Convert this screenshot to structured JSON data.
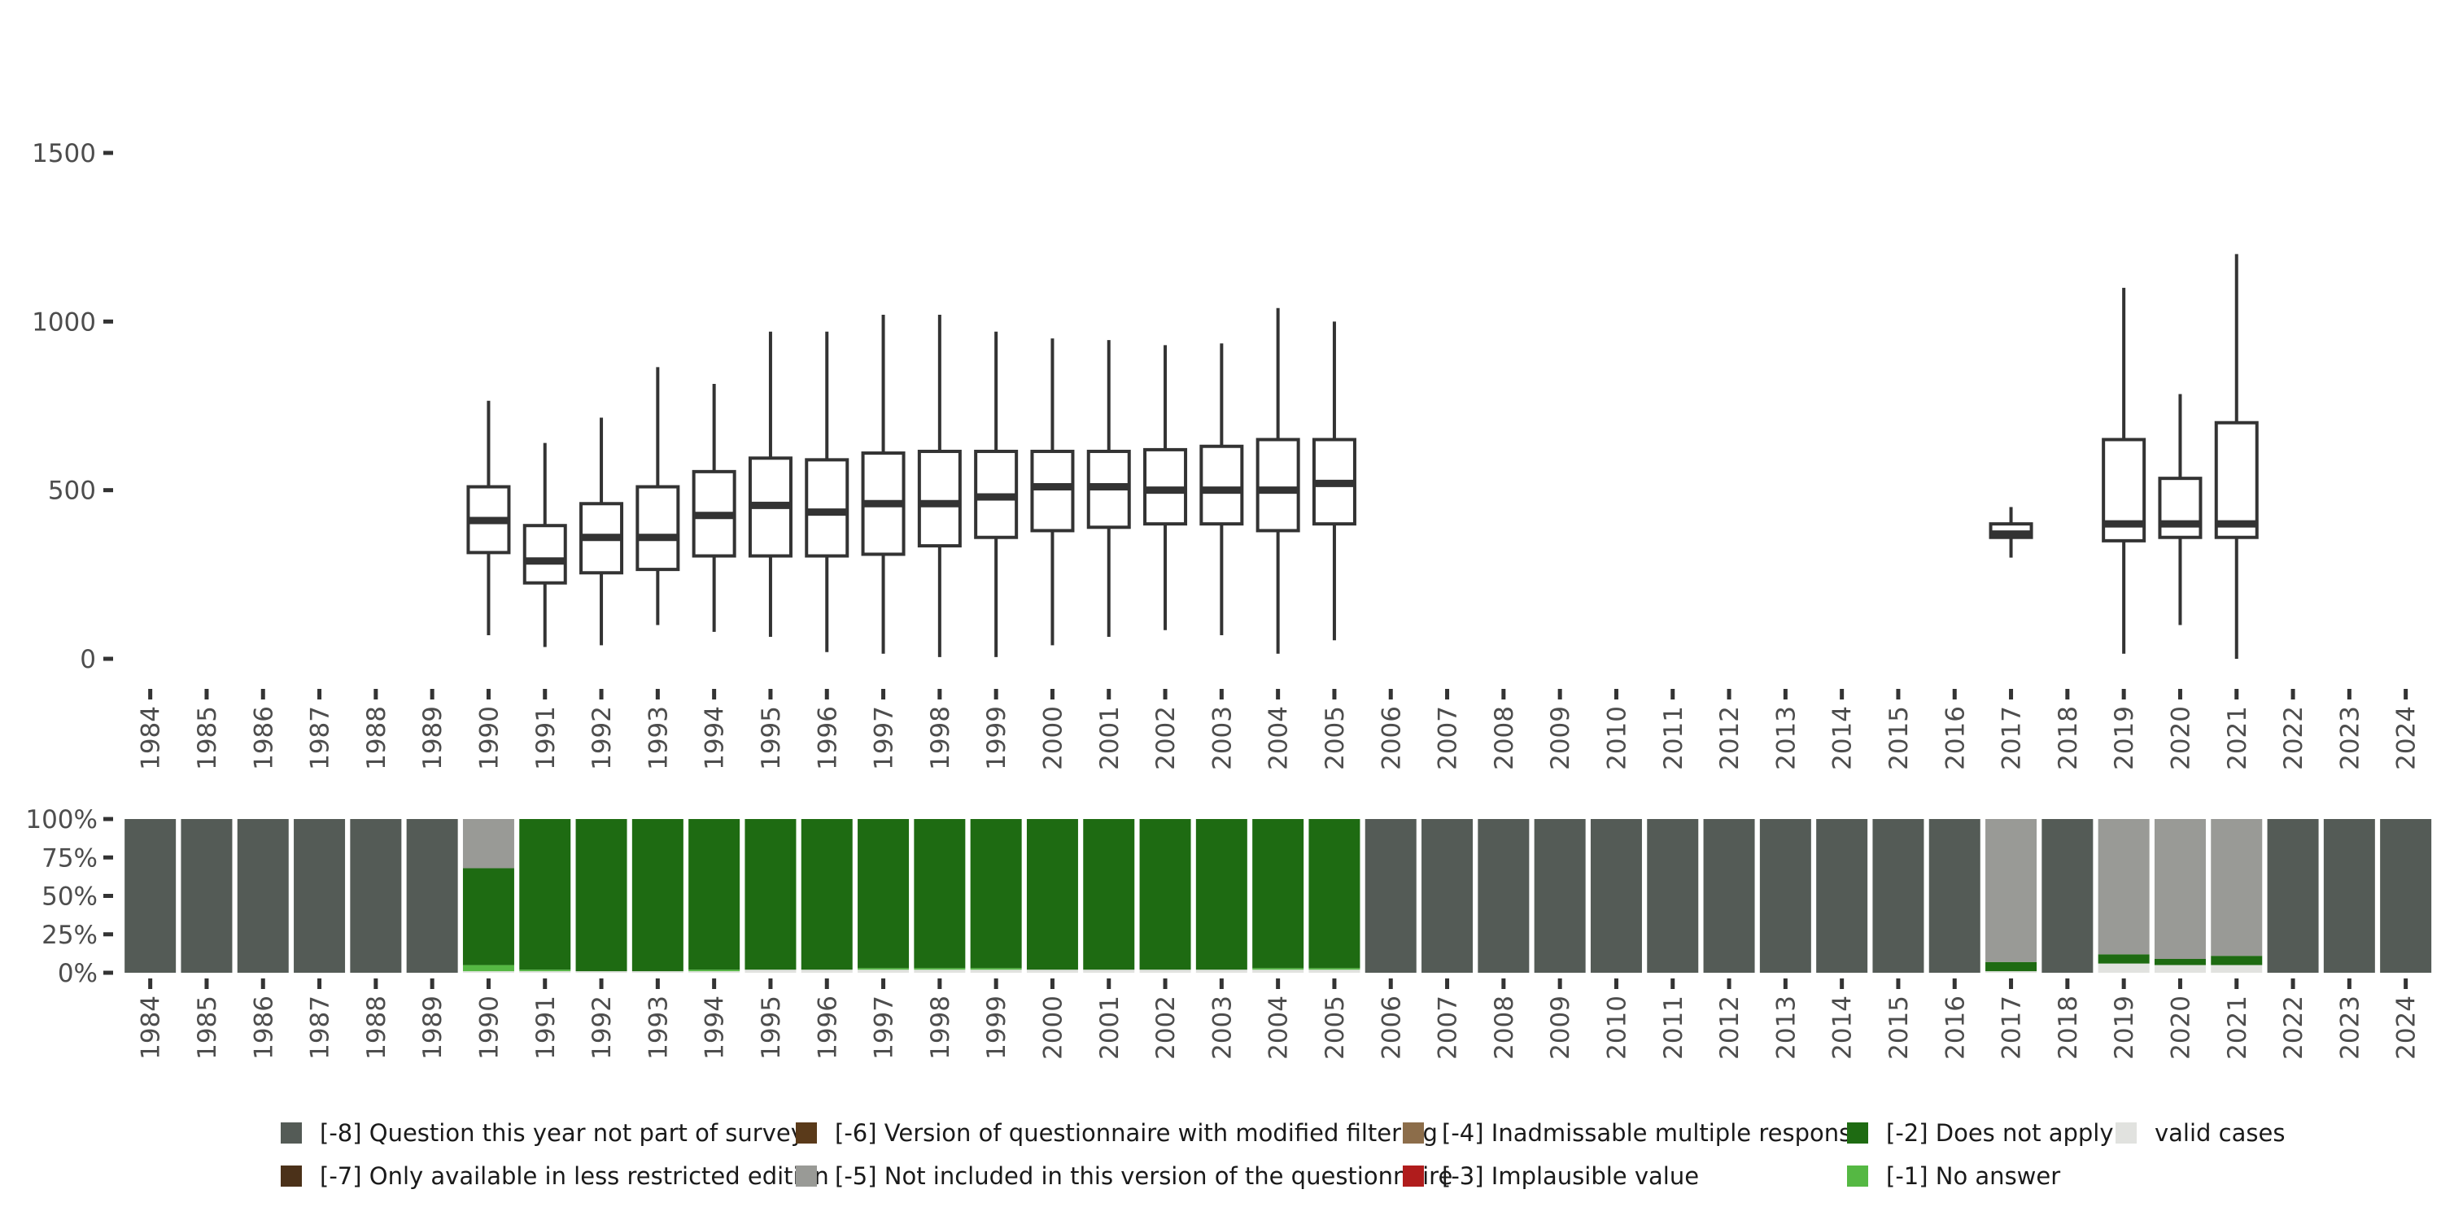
{
  "chart_data": [
    {
      "type": "boxplot",
      "title": "",
      "xlabel": "",
      "ylabel": "",
      "ylim": [
        0,
        1750
      ],
      "y_ticks": [
        0,
        500,
        1000,
        1500
      ],
      "categories": [
        "1984",
        "1985",
        "1986",
        "1987",
        "1988",
        "1989",
        "1990",
        "1991",
        "1992",
        "1993",
        "1994",
        "1995",
        "1996",
        "1997",
        "1998",
        "1999",
        "2000",
        "2001",
        "2002",
        "2003",
        "2004",
        "2005",
        "2006",
        "2007",
        "2008",
        "2009",
        "2010",
        "2011",
        "2012",
        "2013",
        "2014",
        "2015",
        "2016",
        "2017",
        "2018",
        "2019",
        "2020",
        "2021",
        "2022",
        "2023",
        "2024"
      ],
      "boxes": [
        {
          "x": "1990",
          "min": 70,
          "q1": 315,
          "median": 410,
          "q3": 510,
          "max": 765
        },
        {
          "x": "1991",
          "min": 35,
          "q1": 225,
          "median": 290,
          "q3": 395,
          "max": 640
        },
        {
          "x": "1992",
          "min": 40,
          "q1": 255,
          "median": 360,
          "q3": 460,
          "max": 715
        },
        {
          "x": "1993",
          "min": 100,
          "q1": 265,
          "median": 360,
          "q3": 510,
          "max": 865
        },
        {
          "x": "1994",
          "min": 80,
          "q1": 305,
          "median": 425,
          "q3": 555,
          "max": 815
        },
        {
          "x": "1995",
          "min": 65,
          "q1": 305,
          "median": 455,
          "q3": 595,
          "max": 970
        },
        {
          "x": "1996",
          "min": 20,
          "q1": 305,
          "median": 435,
          "q3": 590,
          "max": 970
        },
        {
          "x": "1997",
          "min": 15,
          "q1": 310,
          "median": 460,
          "q3": 610,
          "max": 1020
        },
        {
          "x": "1998",
          "min": 5,
          "q1": 335,
          "median": 460,
          "q3": 615,
          "max": 1020
        },
        {
          "x": "1999",
          "min": 5,
          "q1": 360,
          "median": 480,
          "q3": 615,
          "max": 970
        },
        {
          "x": "2000",
          "min": 40,
          "q1": 380,
          "median": 510,
          "q3": 615,
          "max": 950
        },
        {
          "x": "2001",
          "min": 65,
          "q1": 390,
          "median": 510,
          "q3": 615,
          "max": 945
        },
        {
          "x": "2002",
          "min": 85,
          "q1": 400,
          "median": 500,
          "q3": 620,
          "max": 930
        },
        {
          "x": "2003",
          "min": 70,
          "q1": 400,
          "median": 500,
          "q3": 630,
          "max": 935
        },
        {
          "x": "2004",
          "min": 15,
          "q1": 380,
          "median": 500,
          "q3": 650,
          "max": 1040
        },
        {
          "x": "2005",
          "min": 55,
          "q1": 400,
          "median": 520,
          "q3": 650,
          "max": 1000
        },
        {
          "x": "2017",
          "min": 300,
          "q1": 360,
          "median": 370,
          "q3": 400,
          "max": 450
        },
        {
          "x": "2019",
          "min": 15,
          "q1": 350,
          "median": 400,
          "q3": 650,
          "max": 1100
        },
        {
          "x": "2020",
          "min": 100,
          "q1": 360,
          "median": 400,
          "q3": 535,
          "max": 785
        },
        {
          "x": "2021",
          "min": 0,
          "q1": 360,
          "median": 400,
          "q3": 700,
          "max": 1200
        }
      ]
    },
    {
      "type": "stacked_bar",
      "title": "",
      "y_ticks": [
        "0%",
        "25%",
        "50%",
        "75%",
        "100%"
      ],
      "categories": [
        "1984",
        "1985",
        "1986",
        "1987",
        "1988",
        "1989",
        "1990",
        "1991",
        "1992",
        "1993",
        "1994",
        "1995",
        "1996",
        "1997",
        "1998",
        "1999",
        "2000",
        "2001",
        "2002",
        "2003",
        "2004",
        "2005",
        "2006",
        "2007",
        "2008",
        "2009",
        "2010",
        "2011",
        "2012",
        "2013",
        "2014",
        "2015",
        "2016",
        "2017",
        "2018",
        "2019",
        "2020",
        "2021",
        "2022",
        "2023",
        "2024"
      ],
      "stack_order_bottom_to_top": [
        "valid",
        "-1",
        "-2",
        "-5",
        "-8"
      ],
      "colors": {
        "-8": "#545b56",
        "-7": "#4b3119",
        "-6": "#5a3a1a",
        "-5": "#999a96",
        "-4": "#8c6d4a",
        "-3": "#b01c1c",
        "-2": "#1e6b12",
        "-1": "#55b843",
        "valid": "#e1e2df"
      },
      "shares_percent": {
        "1984": {
          "-8": 100
        },
        "1985": {
          "-8": 100
        },
        "1986": {
          "-8": 100
        },
        "1987": {
          "-8": 100
        },
        "1988": {
          "-8": 100
        },
        "1989": {
          "-8": 100
        },
        "1990": {
          "valid": 1,
          "-1": 4,
          "-2": 63,
          "-5": 32
        },
        "1991": {
          "valid": 1,
          "-1": 1,
          "-2": 98
        },
        "1992": {
          "valid": 1,
          "-2": 99
        },
        "1993": {
          "valid": 1,
          "-2": 99
        },
        "1994": {
          "valid": 1,
          "-1": 1,
          "-2": 98
        },
        "1995": {
          "valid": 2,
          "-2": 98
        },
        "1996": {
          "valid": 2,
          "-2": 98
        },
        "1997": {
          "valid": 2,
          "-1": 1,
          "-2": 97
        },
        "1998": {
          "valid": 2,
          "-1": 1,
          "-2": 97
        },
        "1999": {
          "valid": 2,
          "-1": 1,
          "-2": 97
        },
        "2000": {
          "valid": 2,
          "-2": 98
        },
        "2001": {
          "valid": 2,
          "-2": 98
        },
        "2002": {
          "valid": 2,
          "-2": 98
        },
        "2003": {
          "valid": 2,
          "-2": 98
        },
        "2004": {
          "valid": 2,
          "-1": 1,
          "-2": 97
        },
        "2005": {
          "valid": 2,
          "-1": 1,
          "-2": 97
        },
        "2006": {
          "-8": 100
        },
        "2007": {
          "-8": 100
        },
        "2008": {
          "-8": 100
        },
        "2009": {
          "-8": 100
        },
        "2010": {
          "-8": 100
        },
        "2011": {
          "-8": 100
        },
        "2012": {
          "-8": 100
        },
        "2013": {
          "-8": 100
        },
        "2014": {
          "-8": 100
        },
        "2015": {
          "-8": 100
        },
        "2016": {
          "-8": 100
        },
        "2017": {
          "valid": 1,
          "-2": 6,
          "-5": 93
        },
        "2018": {
          "-8": 100
        },
        "2019": {
          "valid": 6,
          "-2": 6,
          "-5": 88
        },
        "2020": {
          "valid": 5,
          "-2": 4,
          "-5": 91
        },
        "2021": {
          "valid": 5,
          "-2": 6,
          "-5": 89
        },
        "2022": {
          "-8": 100
        },
        "2023": {
          "-8": 100
        },
        "2024": {
          "-8": 100
        }
      }
    }
  ],
  "legend": {
    "rows": [
      [
        {
          "key": "-8",
          "label": "[-8] Question this year not part of survey"
        },
        {
          "key": "-6",
          "label": "[-6] Version of questionnaire with modified filtering"
        },
        {
          "key": "-4",
          "label": "[-4] Inadmissable multiple response"
        },
        {
          "key": "-2",
          "label": "[-2] Does not apply"
        },
        {
          "key": "valid",
          "label": "valid cases"
        }
      ],
      [
        {
          "key": "-7",
          "label": "[-7] Only available in less restricted edition"
        },
        {
          "key": "-5",
          "label": "[-5] Not included in this version of the questionnaire"
        },
        {
          "key": "-3",
          "label": "[-3] Implausible value"
        },
        {
          "key": "-1",
          "label": "[-1] No answer"
        }
      ]
    ]
  }
}
